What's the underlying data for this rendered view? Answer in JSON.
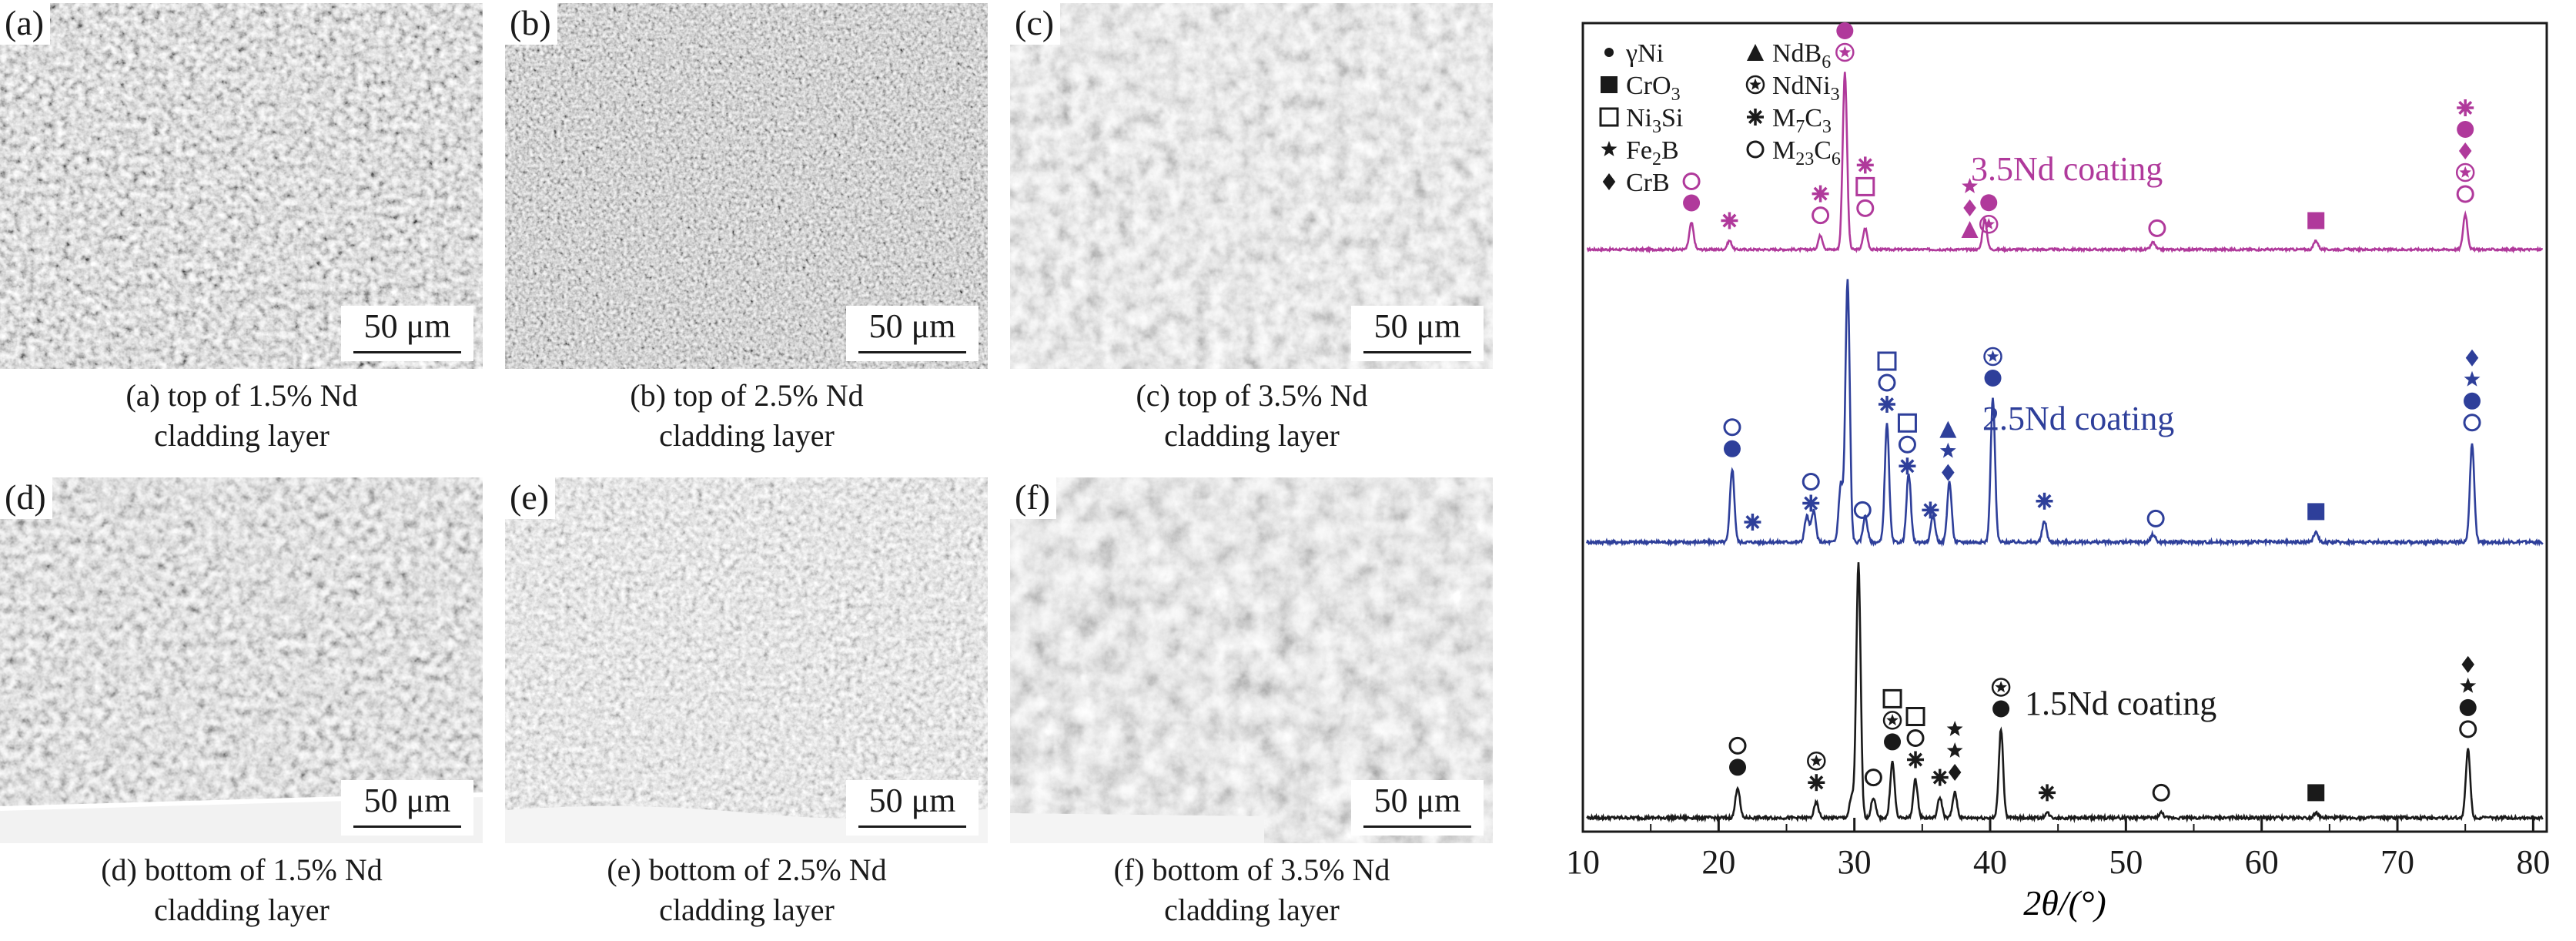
{
  "micrographs": [
    {
      "tag": "(a)",
      "scale": "50 μm",
      "caption_line1": "(a) top of 1.5% Nd",
      "caption_line2": "cladding layer"
    },
    {
      "tag": "(b)",
      "scale": "50 μm",
      "caption_line1": "(b) top of 2.5% Nd",
      "caption_line2": "cladding layer"
    },
    {
      "tag": "(c)",
      "scale": "50 μm",
      "caption_line1": "(c) top of 3.5% Nd",
      "caption_line2": "cladding layer"
    },
    {
      "tag": "(d)",
      "scale": "50 μm",
      "caption_line1": "(d) bottom of 1.5% Nd",
      "caption_line2": "cladding layer"
    },
    {
      "tag": "(e)",
      "scale": "50 μm",
      "caption_line1": "(e) bottom of 2.5% Nd",
      "caption_line2": "cladding layer"
    },
    {
      "tag": "(f)",
      "scale": "50 μm",
      "caption_line1": "(f) bottom of 3.5% Nd",
      "caption_line2": "cladding layer"
    }
  ],
  "chart_data": {
    "type": "line",
    "xlabel": "2θ/(°)",
    "xlim": [
      10,
      81
    ],
    "xticks": [
      10,
      20,
      30,
      40,
      50,
      60,
      70,
      80
    ],
    "y_axis": "no ticks, stacked offset patterns",
    "colors": {
      "3.5Nd": "#b0399b",
      "2.5Nd": "#2e3f9a",
      "1.5Nd": "#1a1a1a"
    },
    "legend": [
      {
        "label": "γNi",
        "symbol": "small-dot"
      },
      {
        "label": "CrO3",
        "symbol": "square-filled"
      },
      {
        "label": "Ni3Si",
        "symbol": "square-open"
      },
      {
        "label": "Fe2B",
        "symbol": "star"
      },
      {
        "label": "CrB",
        "symbol": "diamond"
      },
      {
        "label": "NdB6",
        "symbol": "triangle"
      },
      {
        "label": "NdNi3",
        "symbol": "star-circle"
      },
      {
        "label": "M7C3",
        "symbol": "asterisk"
      },
      {
        "label": "M23C6",
        "symbol": "circle-open"
      }
    ],
    "series": [
      {
        "name": "3.5Nd coating",
        "peaks": [
          [
            18.0,
            0.15
          ],
          [
            20.8,
            0.05
          ],
          [
            27.5,
            0.08
          ],
          [
            29.3,
            1.0
          ],
          [
            30.8,
            0.12
          ],
          [
            39.6,
            0.17
          ],
          [
            52.0,
            0.04
          ],
          [
            64.0,
            0.05
          ],
          [
            75.0,
            0.2
          ]
        ],
        "markers": [
          {
            "x": 18.0,
            "symbols": [
              "circle-open",
              "dot"
            ]
          },
          {
            "x": 20.8,
            "symbols": [
              "asterisk"
            ]
          },
          {
            "x": 27.5,
            "symbols": [
              "asterisk",
              "circle-open"
            ]
          },
          {
            "x": 29.3,
            "symbols": [
              "asterisk",
              "dot",
              "star-circle"
            ]
          },
          {
            "x": 30.8,
            "symbols": [
              "asterisk",
              "square-open",
              "circle-open"
            ]
          },
          {
            "x": 38.5,
            "symbols": [
              "star",
              "diamond",
              "triangle"
            ]
          },
          {
            "x": 39.9,
            "symbols": [
              "dot",
              "star-circle"
            ]
          },
          {
            "x": 52.3,
            "symbols": [
              "circle-open"
            ]
          },
          {
            "x": 64.0,
            "symbols": [
              "square-filled"
            ]
          },
          {
            "x": 75.0,
            "symbols": [
              "asterisk",
              "dot",
              "diamond",
              "star-circle",
              "circle-open"
            ]
          }
        ]
      },
      {
        "name": "2.5Nd coating",
        "peaks": [
          [
            21.0,
            0.28
          ],
          [
            26.5,
            0.1
          ],
          [
            27.0,
            0.12
          ],
          [
            29.0,
            0.22
          ],
          [
            29.5,
            1.0
          ],
          [
            30.8,
            0.1
          ],
          [
            32.4,
            0.45
          ],
          [
            34.0,
            0.26
          ],
          [
            35.8,
            0.1
          ],
          [
            37.0,
            0.23
          ],
          [
            40.2,
            0.55
          ],
          [
            44.0,
            0.08
          ],
          [
            52.0,
            0.03
          ],
          [
            64.0,
            0.04
          ],
          [
            75.5,
            0.38
          ]
        ],
        "markers": [
          {
            "x": 21.0,
            "symbols": [
              "circle-open",
              "dot"
            ]
          },
          {
            "x": 22.5,
            "symbols": [
              "asterisk"
            ]
          },
          {
            "x": 26.8,
            "symbols": [
              "circle-open",
              "asterisk"
            ]
          },
          {
            "x": 30.6,
            "symbols": [
              "circle-open"
            ]
          },
          {
            "x": 32.4,
            "symbols": [
              "square-open",
              "circle-open",
              "asterisk"
            ]
          },
          {
            "x": 33.9,
            "symbols": [
              "square-open",
              "circle-open",
              "asterisk"
            ]
          },
          {
            "x": 35.6,
            "symbols": [
              "asterisk"
            ]
          },
          {
            "x": 36.9,
            "symbols": [
              "triangle",
              "star",
              "diamond"
            ]
          },
          {
            "x": 40.2,
            "symbols": [
              "star-circle",
              "dot"
            ]
          },
          {
            "x": 44.0,
            "symbols": [
              "asterisk"
            ]
          },
          {
            "x": 52.2,
            "symbols": [
              "circle-open"
            ]
          },
          {
            "x": 64.0,
            "symbols": [
              "square-filled"
            ]
          },
          {
            "x": 75.5,
            "symbols": [
              "diamond",
              "star",
              "dot",
              "circle-open"
            ]
          }
        ]
      },
      {
        "name": "1.5Nd coating",
        "peaks": [
          [
            21.4,
            0.12
          ],
          [
            27.2,
            0.06
          ],
          [
            29.8,
            0.08
          ],
          [
            30.3,
            1.0
          ],
          [
            31.4,
            0.08
          ],
          [
            32.8,
            0.22
          ],
          [
            34.5,
            0.15
          ],
          [
            36.3,
            0.08
          ],
          [
            37.4,
            0.1
          ],
          [
            40.8,
            0.35
          ],
          [
            44.2,
            0.02
          ],
          [
            52.6,
            0.02
          ],
          [
            64.0,
            0.02
          ],
          [
            75.2,
            0.27
          ]
        ],
        "markers": [
          {
            "x": 21.4,
            "symbols": [
              "circle-open",
              "dot"
            ]
          },
          {
            "x": 27.2,
            "symbols": [
              "star-circle",
              "asterisk"
            ]
          },
          {
            "x": 31.4,
            "symbols": [
              "circle-open"
            ]
          },
          {
            "x": 32.8,
            "symbols": [
              "square-open",
              "star-circle",
              "dot"
            ]
          },
          {
            "x": 34.5,
            "symbols": [
              "square-open",
              "circle-open",
              "asterisk"
            ]
          },
          {
            "x": 36.3,
            "symbols": [
              "asterisk"
            ]
          },
          {
            "x": 37.4,
            "symbols": [
              "star",
              "star",
              "diamond"
            ]
          },
          {
            "x": 40.8,
            "symbols": [
              "star-circle",
              "dot"
            ]
          },
          {
            "x": 44.2,
            "symbols": [
              "asterisk"
            ]
          },
          {
            "x": 52.6,
            "symbols": [
              "circle-open"
            ]
          },
          {
            "x": 64.0,
            "symbols": [
              "square-filled"
            ]
          },
          {
            "x": 75.2,
            "symbols": [
              "diamond",
              "star",
              "dot",
              "circle-open"
            ]
          }
        ]
      }
    ]
  }
}
